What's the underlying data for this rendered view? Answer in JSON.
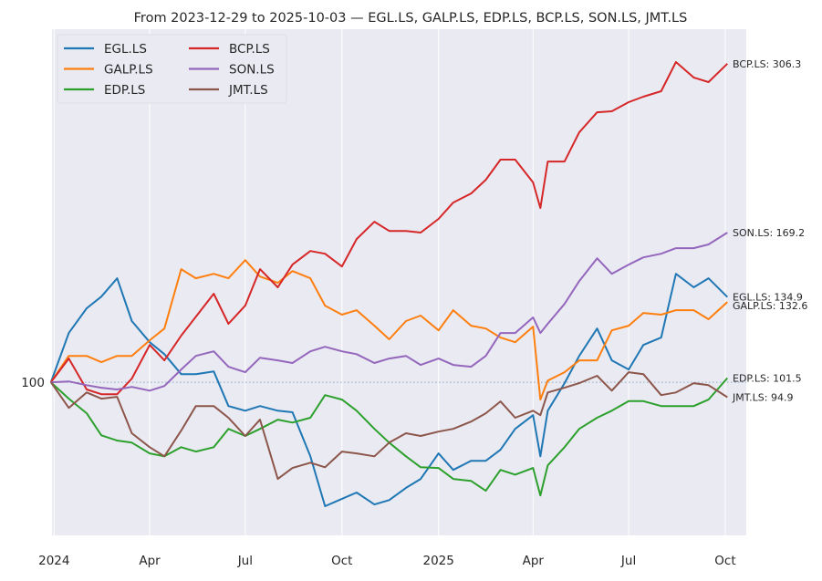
{
  "chart_data": {
    "type": "line",
    "title": "From 2023-12-29 to 2025-10-03 — EGL.LS, GALP.LS, EDP.LS, BCP.LS, SON.LS, JMT.LS",
    "xlabel": "",
    "ylabel": "",
    "yscale": "log",
    "ylim": [
      58.4,
      345.7
    ],
    "xlim": [
      "2023-12-30",
      "2025-10-21"
    ],
    "grid": true,
    "legend_position": "top-left",
    "baseline": 100,
    "y_ticks": [
      {
        "value": 100,
        "label": "100"
      }
    ],
    "x_ticks": [
      {
        "date": "2024-01-01",
        "label": "2024"
      },
      {
        "date": "2024-04-01",
        "label": "Apr"
      },
      {
        "date": "2024-07-01",
        "label": "Jul"
      },
      {
        "date": "2024-10-01",
        "label": "Oct"
      },
      {
        "date": "2025-01-01",
        "label": "2025"
      },
      {
        "date": "2025-04-01",
        "label": "Apr"
      },
      {
        "date": "2025-07-01",
        "label": "Jul"
      },
      {
        "date": "2025-10-01",
        "label": "Oct"
      }
    ],
    "dates": [
      "2023-12-29",
      "2024-01-15",
      "2024-02-01",
      "2024-02-15",
      "2024-03-01",
      "2024-03-15",
      "2024-04-01",
      "2024-04-15",
      "2024-05-01",
      "2024-05-15",
      "2024-06-01",
      "2024-06-15",
      "2024-07-01",
      "2024-07-15",
      "2024-08-01",
      "2024-08-15",
      "2024-09-01",
      "2024-09-15",
      "2024-10-01",
      "2024-10-15",
      "2024-11-01",
      "2024-11-15",
      "2024-12-01",
      "2024-12-15",
      "2025-01-01",
      "2025-01-15",
      "2025-02-01",
      "2025-02-15",
      "2025-03-01",
      "2025-03-15",
      "2025-04-01",
      "2025-04-08",
      "2025-04-15",
      "2025-05-01",
      "2025-05-15",
      "2025-06-01",
      "2025-06-15",
      "2025-07-01",
      "2025-07-15",
      "2025-08-01",
      "2025-08-15",
      "2025-09-01",
      "2025-09-15",
      "2025-10-03"
    ],
    "series": [
      {
        "name": "EGL.LS",
        "color": "#1f77b4",
        "end_label": "EGL.LS: 134.9",
        "values": [
          100,
          118.9,
          129.7,
          135.1,
          144.1,
          124,
          115.1,
          110.4,
          102.9,
          102.9,
          103.9,
          92,
          90.5,
          92,
          90.5,
          90,
          77.1,
          64.7,
          66.4,
          67.9,
          65.1,
          66.1,
          69,
          71.2,
          77.9,
          73.5,
          75.9,
          75.9,
          78.9,
          84.9,
          89.1,
          77.1,
          90.5,
          99.7,
          109.7,
          120.8,
          108,
          104.6,
          114,
          117,
          146.4,
          139.6,
          144.1,
          134.9
        ]
      },
      {
        "name": "GALP.LS",
        "color": "#ff7f0e",
        "end_label": "GALP.LS: 132.6",
        "values": [
          100,
          109.7,
          109.7,
          107.3,
          109.7,
          109.7,
          115.9,
          120.8,
          148.8,
          144.1,
          146.4,
          144.1,
          153.6,
          145,
          141.8,
          147.8,
          144.1,
          130.9,
          126.8,
          128.8,
          122,
          116.3,
          124,
          126.4,
          120,
          128.8,
          122,
          120.8,
          117,
          115.1,
          121.6,
          94.1,
          100.6,
          103.6,
          108,
          108,
          120,
          122,
          127.6,
          126.8,
          128.8,
          128.8,
          124.8,
          132.6
        ]
      },
      {
        "name": "EDP.LS",
        "color": "#2ca02c",
        "end_label": "EDP.LS: 101.5",
        "values": [
          100,
          94.4,
          89.7,
          83,
          81.5,
          80.9,
          77.9,
          77.1,
          79.6,
          78.4,
          79.6,
          84.9,
          82.8,
          84.9,
          87.7,
          86.8,
          88.3,
          95.6,
          94.1,
          90.5,
          84.9,
          80.9,
          77.1,
          74.2,
          74,
          71.2,
          70.7,
          68.3,
          73.5,
          72.3,
          74,
          67.2,
          74.7,
          79.6,
          84.9,
          88.3,
          90.5,
          93.6,
          93.6,
          92,
          92,
          92,
          94.1,
          101.5
        ]
      },
      {
        "name": "BCP.LS",
        "color": "#d62728",
        "end_label": "BCP.LS: 306.3",
        "values": [
          100,
          108.7,
          97.5,
          95.9,
          95.9,
          101.3,
          114,
          108,
          117.8,
          125.9,
          136.5,
          122.8,
          130.9,
          148.8,
          139.6,
          151.2,
          158.6,
          157.1,
          150.2,
          165.4,
          175.8,
          170.2,
          170.2,
          169.2,
          177.5,
          188,
          194.1,
          203.7,
          218.6,
          218.6,
          201.8,
          184.4,
          217.2,
          217.2,
          240.6,
          258.2,
          259.1,
          267.5,
          272.7,
          278,
          308,
          291.7,
          287.1,
          306.3
        ]
      },
      {
        "name": "SON.LS",
        "color": "#9467bd",
        "end_label": "SON.LS: 169.2",
        "values": [
          100,
          100.3,
          99,
          98.1,
          97.5,
          98.4,
          97.1,
          98.7,
          104.6,
          109.7,
          111.5,
          105.6,
          103.6,
          109,
          108,
          107,
          111.5,
          113.3,
          111.5,
          110.4,
          107,
          108.7,
          109.7,
          106.3,
          108.7,
          106.3,
          105.6,
          109.7,
          118.9,
          118.9,
          125.6,
          118.9,
          122.8,
          131.7,
          142.7,
          154.6,
          146.4,
          151.2,
          155.1,
          157.1,
          160.2,
          160.2,
          162.3,
          169.2
        ]
      },
      {
        "name": "JMT.LS",
        "color": "#8c564b",
        "end_label": "JMT.LS: 94.9",
        "values": [
          100,
          91.4,
          96.5,
          94.4,
          95,
          83.6,
          79.6,
          77.1,
          84.4,
          92,
          92,
          88.3,
          82.8,
          87.7,
          71.2,
          74,
          75.4,
          74.2,
          78.4,
          77.9,
          77.1,
          80.9,
          83.6,
          82.8,
          84.1,
          84.9,
          87.1,
          89.7,
          93.5,
          88.3,
          90.5,
          89.1,
          96.5,
          98.1,
          99.7,
          102.3,
          97.1,
          103.6,
          102.9,
          95.6,
          96.5,
          99.7,
          99,
          94.9
        ]
      }
    ]
  },
  "colors": {
    "plot_bg": "#eaeaf2",
    "grid": "#ffffff",
    "baseline": "#9fb4cc"
  }
}
